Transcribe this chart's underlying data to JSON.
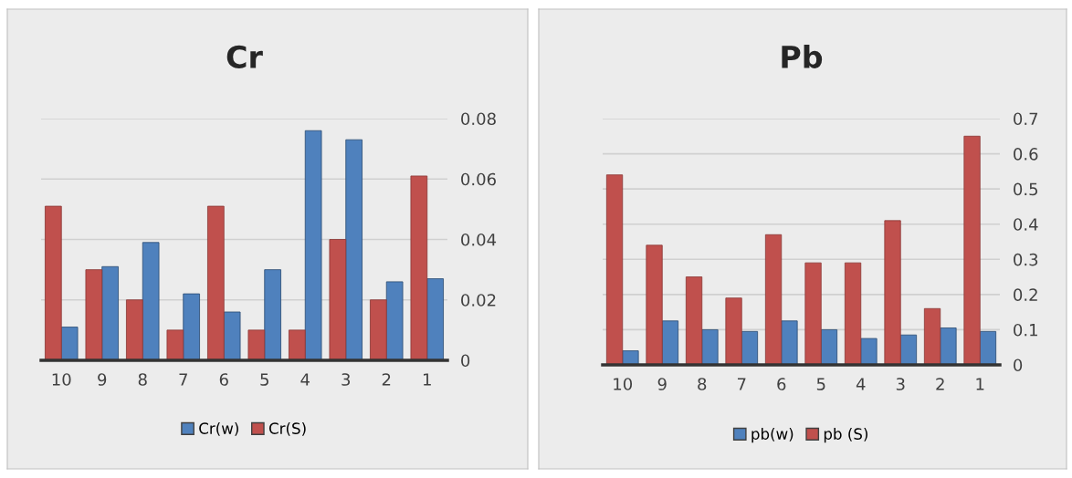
{
  "chart_data": [
    {
      "type": "bar",
      "title": "Cr",
      "categories": [
        "10",
        "9",
        "8",
        "7",
        "6",
        "5",
        "4",
        "3",
        "2",
        "1"
      ],
      "series": [
        {
          "name": "Cr(w)",
          "color": "#4f81bd",
          "values": [
            0.011,
            0.031,
            0.039,
            0.022,
            0.016,
            0.03,
            0.076,
            0.073,
            0.026,
            0.027
          ]
        },
        {
          "name": "Cr(S)",
          "color": "#c0504d",
          "values": [
            0.051,
            0.03,
            0.02,
            0.01,
            0.051,
            0.01,
            0.01,
            0.04,
            0.02,
            0.061
          ]
        }
      ],
      "ylim": [
        0,
        0.08
      ],
      "yticks": [
        {
          "value": 0,
          "label": "0"
        },
        {
          "value": 0.02,
          "label": "0.02"
        },
        {
          "value": 0.04,
          "label": "0.04"
        },
        {
          "value": 0.06,
          "label": "0.06"
        },
        {
          "value": 0.08,
          "label": "0.08"
        }
      ],
      "grid": "y",
      "legend": "bottom"
    },
    {
      "type": "bar",
      "title": "Pb",
      "categories": [
        "10",
        "9",
        "8",
        "7",
        "6",
        "5",
        "4",
        "3",
        "2",
        "1"
      ],
      "series": [
        {
          "name": "pb(w)",
          "color": "#4f81bd",
          "values": [
            0.04,
            0.125,
            0.1,
            0.095,
            0.125,
            0.1,
            0.075,
            0.085,
            0.105,
            0.095
          ]
        },
        {
          "name": "pb (S)",
          "color": "#c0504d",
          "values": [
            0.54,
            0.34,
            0.25,
            0.19,
            0.37,
            0.29,
            0.29,
            0.41,
            0.16,
            0.65
          ]
        }
      ],
      "ylim": [
        0,
        0.7
      ],
      "yticks": [
        {
          "value": 0,
          "label": "0"
        },
        {
          "value": 0.1,
          "label": "0.1"
        },
        {
          "value": 0.2,
          "label": "0.2"
        },
        {
          "value": 0.3,
          "label": "0.3"
        },
        {
          "value": 0.4,
          "label": "0.4"
        },
        {
          "value": 0.5,
          "label": "0.5"
        },
        {
          "value": 0.6,
          "label": "0.6"
        },
        {
          "value": 0.7,
          "label": "0.7"
        }
      ],
      "grid": "y",
      "legend": "bottom"
    }
  ]
}
